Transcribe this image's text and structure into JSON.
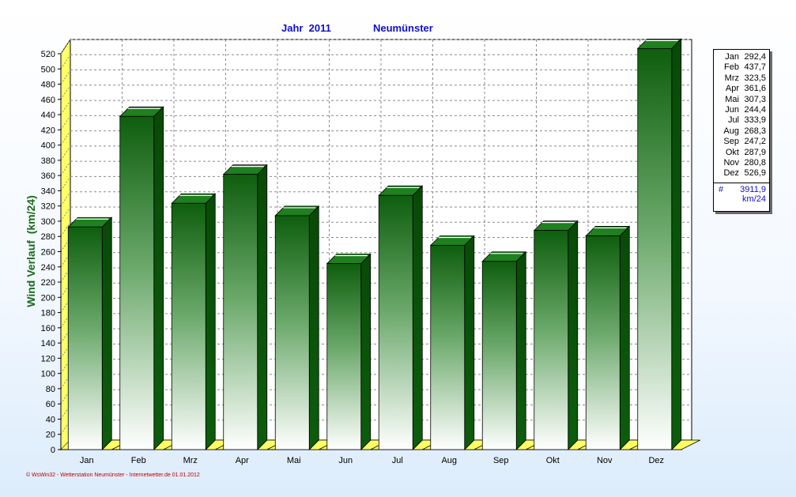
{
  "header": {
    "year_label": "Jahr  2011",
    "station": "Neumünster"
  },
  "chart_data": {
    "type": "bar",
    "title": "Jahr  2011",
    "subtitle": "Neumünster",
    "ylabel": "Wind Verlauf  (km/24)",
    "xlabel": "",
    "categories": [
      "Jan",
      "Feb",
      "Mrz",
      "Apr",
      "Mai",
      "Jun",
      "Jul",
      "Aug",
      "Sep",
      "Okt",
      "Nov",
      "Dez"
    ],
    "values": [
      292.4,
      437.7,
      323.5,
      361.6,
      307.3,
      244.4,
      333.9,
      268.3,
      247.2,
      287.9,
      280.8,
      526.9
    ],
    "ylim": [
      0,
      520
    ],
    "yticks": [
      0,
      20,
      40,
      60,
      80,
      100,
      120,
      140,
      160,
      180,
      200,
      220,
      240,
      260,
      280,
      300,
      320,
      340,
      360,
      380,
      400,
      420,
      440,
      460,
      480,
      500,
      520
    ],
    "grid": true,
    "legend_placement": "right"
  },
  "legend": {
    "rows": [
      {
        "month": "Jan",
        "value": "292,4"
      },
      {
        "month": "Feb",
        "value": "437,7"
      },
      {
        "month": "Mrz",
        "value": "323,5"
      },
      {
        "month": "Apr",
        "value": "361,6"
      },
      {
        "month": "Mai",
        "value": "307,3"
      },
      {
        "month": "Jun",
        "value": "244,4"
      },
      {
        "month": "Jul",
        "value": "333,9"
      },
      {
        "month": "Aug",
        "value": "268,3"
      },
      {
        "month": "Sep",
        "value": "247,2"
      },
      {
        "month": "Okt",
        "value": "287,9"
      },
      {
        "month": "Nov",
        "value": "280,8"
      },
      {
        "month": "Dez",
        "value": "526,9"
      }
    ],
    "total_symbol": "#",
    "total_value": "3911,9",
    "unit": "km/24"
  },
  "footer": {
    "credit": "© WsWin32 - Wetterstation Neumünster - Internetwetter.de  01.01.2012"
  },
  "colors": {
    "bar_top": "#0e5e0e",
    "bar_bottom": "#ffffff",
    "bar_side": "#0b560b",
    "bar_cap": "#1e801e",
    "floor_yellow": "#ffff66",
    "title_blue": "#1010c8",
    "ylabel_green": "#1a6a1a",
    "footer_red": "#c00000"
  }
}
